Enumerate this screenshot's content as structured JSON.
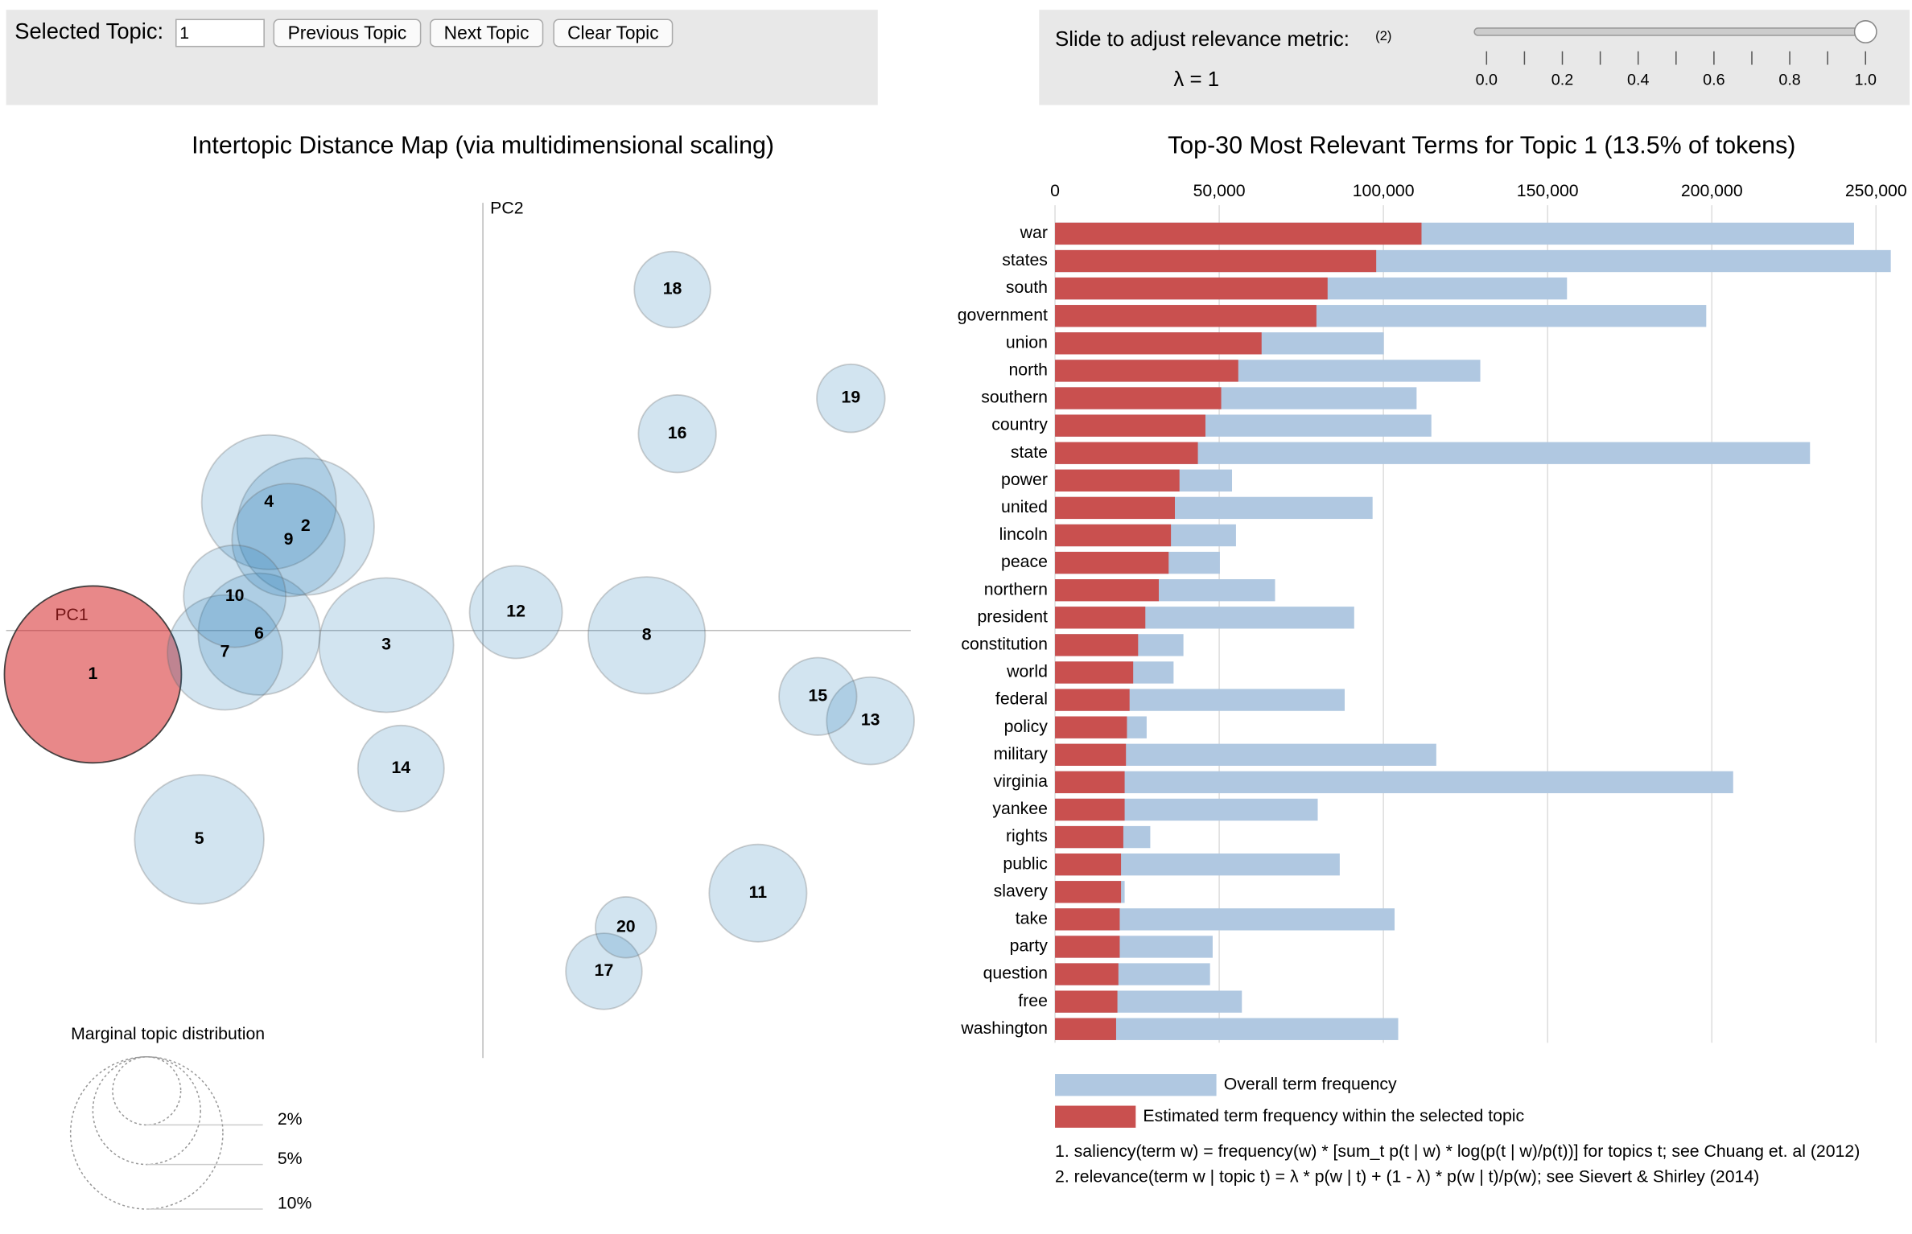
{
  "controls": {
    "topic_label": "Selected Topic:",
    "topic_value": "1",
    "buttons": [
      "Previous Topic",
      "Next Topic",
      "Clear Topic"
    ],
    "slider_label": "Slide to adjust relevance metric:",
    "slider_note": "(2)",
    "lambda_label": "λ = 1",
    "slider": {
      "value": 1,
      "lim": [
        0,
        1
      ],
      "ticks": [
        {
          "value": 0,
          "label": "0.0"
        },
        0.2,
        0.4,
        0.6,
        0.8,
        {
          "value": 1,
          "label": "1.0"
        }
      ],
      "minor_ticks": [
        0.1,
        0.3,
        0.5,
        0.7,
        0.9
      ]
    }
  },
  "chart_data": [
    {
      "type": "scatter",
      "title": "Intertopic Distance Map (via multidimensional scaling)",
      "x_label": "PC1",
      "y_label": "PC2",
      "xlim": [
        -0.39,
        0.35
      ],
      "ylim": [
        -0.35,
        0.35
      ],
      "labels": [
        "1",
        "2",
        "3",
        "4",
        "5",
        "6",
        "7",
        "8",
        "9",
        "10",
        "11",
        "12",
        "13",
        "14",
        "15",
        "16",
        "17",
        "18",
        "19",
        "20"
      ],
      "x": [
        -0.319,
        -0.145,
        -0.079,
        -0.175,
        -0.232,
        -0.183,
        -0.211,
        0.134,
        -0.159,
        -0.203,
        0.225,
        0.027,
        0.317,
        -0.067,
        0.274,
        0.159,
        0.099,
        0.155,
        0.301,
        0.117
      ],
      "y": [
        -0.036,
        0.085,
        -0.012,
        0.105,
        -0.171,
        -0.003,
        -0.018,
        -0.004,
        0.074,
        0.028,
        -0.215,
        0.015,
        -0.074,
        -0.113,
        -0.054,
        0.161,
        -0.279,
        0.279,
        0.19,
        -0.243
      ],
      "sizes": [
        13.5,
        8.1,
        7.8,
        7.8,
        7.2,
        6.4,
        5.7,
        5.9,
        5.5,
        4.5,
        4.1,
        3.7,
        3.3,
        3.2,
        2.6,
        2.6,
        2.5,
        2.5,
        2.0,
        1.6
      ],
      "color": "#1f77b4",
      "selected_color": "#d62728",
      "size_legend": {
        "title": "Marginal topic distribution",
        "values": [
          {
            "value": 2,
            "label": "2%"
          },
          {
            "value": 5,
            "label": "5%"
          },
          {
            "value": 10,
            "label": "10%"
          }
        ]
      }
    },
    {
      "type": "bar",
      "orientation": "horizontal",
      "title": "Top-30 Most Relevant Terms for Topic 1 (13.5% of tokens)",
      "categories": [
        "war",
        "states",
        "south",
        "government",
        "union",
        "north",
        "southern",
        "country",
        "state",
        "power",
        "united",
        "lincoln",
        "peace",
        "northern",
        "president",
        "constitution",
        "world",
        "federal",
        "policy",
        "military",
        "virginia",
        "yankee",
        "rights",
        "public",
        "slavery",
        "take",
        "party",
        "question",
        "free",
        "washington"
      ],
      "series": [
        {
          "name": "Overall term frequency",
          "color": "#b0c8e1",
          "values": [
            243300,
            254500,
            155900,
            198300,
            100100,
            129500,
            110100,
            114600,
            229900,
            53900,
            96700,
            55100,
            50200,
            67000,
            91100,
            39100,
            36100,
            88200,
            27900,
            116100,
            206500,
            80000,
            29000,
            86700,
            21200,
            103400,
            48000,
            47200,
            56900,
            104500
          ]
        },
        {
          "name": "Estimated term frequency within the selected topic",
          "color": "#c9504f",
          "values": [
            111600,
            97800,
            83000,
            79600,
            62900,
            55800,
            50600,
            45800,
            43500,
            37900,
            36500,
            35300,
            34600,
            31600,
            27500,
            25300,
            23800,
            22700,
            21900,
            21600,
            21200,
            21200,
            20800,
            20100,
            20100,
            19700,
            19700,
            19300,
            19000,
            18600
          ]
        }
      ],
      "xlim": [
        0,
        255000
      ],
      "xticks": [
        0,
        {
          "value": 50000,
          "label": "50,000"
        },
        {
          "value": 100000,
          "label": "100,000"
        },
        {
          "value": 150000,
          "label": "150,000"
        },
        {
          "value": 200000,
          "label": "200,000"
        },
        {
          "value": 250000,
          "label": "250,000"
        }
      ],
      "grid": true,
      "notes": [
        "1. saliency(term w) = frequency(w) * [sum_t p(t | w) * log(p(t | w)/p(t))] for topics t; see Chuang et. al (2012)",
        "2. relevance(term w | topic t) = λ * p(w | t) + (1 - λ) * p(w | t)/p(w); see Sievert & Shirley (2014)"
      ]
    }
  ]
}
